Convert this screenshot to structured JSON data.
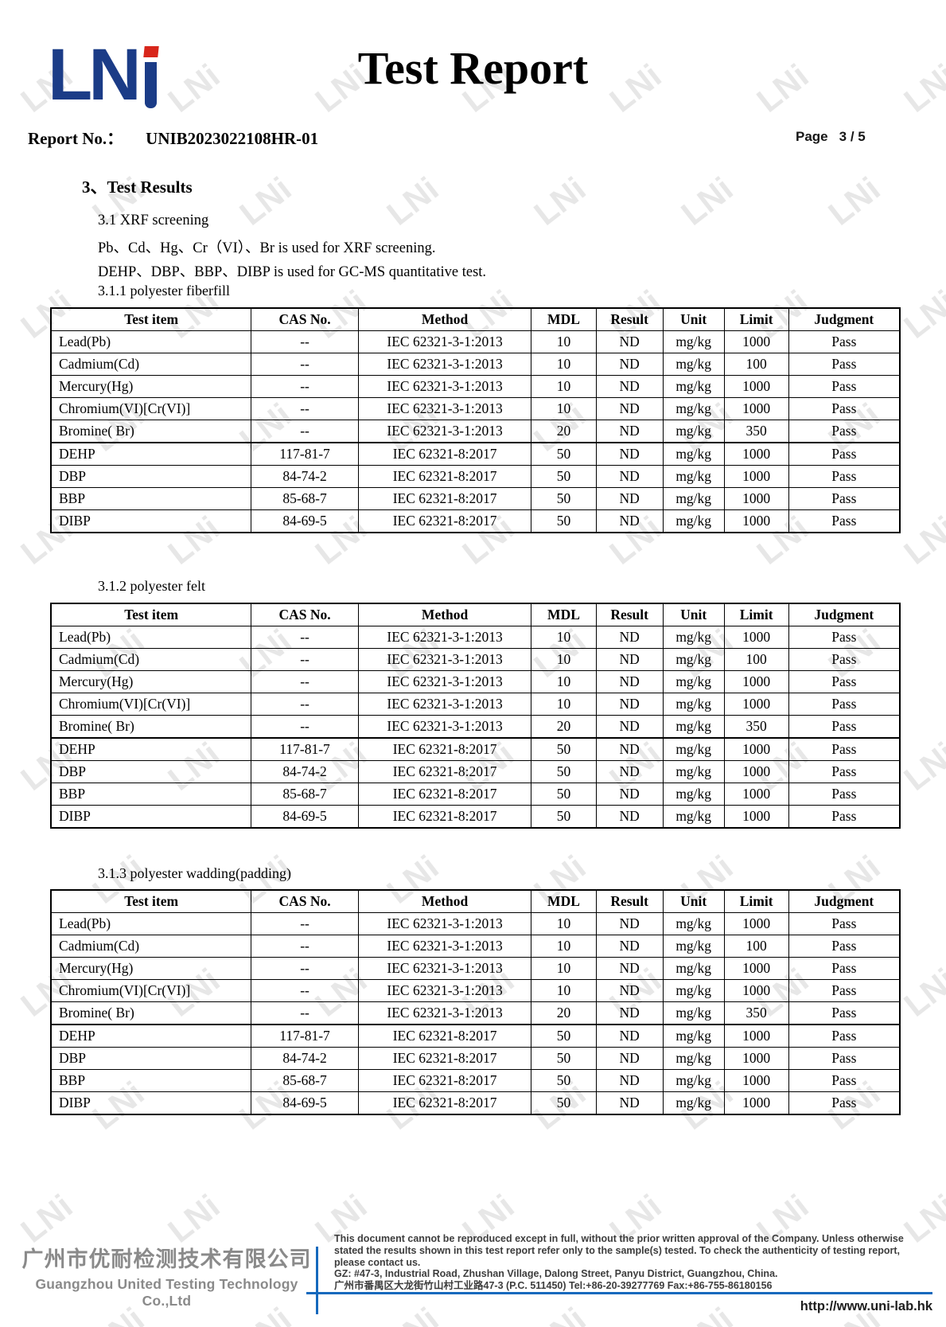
{
  "watermark": {
    "text": "LNi"
  },
  "header": {
    "logo": {
      "text_main": "LN",
      "text_i": "i",
      "blue": "#1b3c87",
      "red": "#d8261b"
    },
    "title": "Test Report",
    "report_no_label": "Report No.：",
    "report_no_value": "UNIB2023022108HR-01",
    "page_label": "Page",
    "page_value": "3 / 5"
  },
  "sections": {
    "results_heading": "3、Test Results",
    "sub_heading": "3.1 XRF screening",
    "desc_line1": "Pb、Cd、Hg、Cr（VI）、Br is used for XRF screening.",
    "desc_line2": "DEHP、DBP、BBP、DIBP is used for GC-MS quantitative test."
  },
  "table_columns": [
    "Test item",
    "CAS No.",
    "Method",
    "MDL",
    "Result",
    "Unit",
    "Limit",
    "Judgment"
  ],
  "tables": [
    {
      "caption": "3.1.1 polyester fiberfill",
      "rows": [
        [
          "Lead(Pb)",
          "--",
          "IEC 62321-3-1:2013",
          "10",
          "ND",
          "mg/kg",
          "1000",
          "Pass"
        ],
        [
          "Cadmium(Cd)",
          "--",
          "IEC 62321-3-1:2013",
          "10",
          "ND",
          "mg/kg",
          "100",
          "Pass"
        ],
        [
          "Mercury(Hg)",
          "--",
          "IEC 62321-3-1:2013",
          "10",
          "ND",
          "mg/kg",
          "1000",
          "Pass"
        ],
        [
          "Chromium(VI)[Cr(VI)]",
          "--",
          "IEC 62321-3-1:2013",
          "10",
          "ND",
          "mg/kg",
          "1000",
          "Pass"
        ],
        [
          "Bromine( Br)",
          "--",
          "IEC 62321-3-1:2013",
          "20",
          "ND",
          "mg/kg",
          "350",
          "Pass"
        ],
        [
          "DEHP",
          "117-81-7",
          "IEC 62321-8:2017",
          "50",
          "ND",
          "mg/kg",
          "1000",
          "Pass"
        ],
        [
          "DBP",
          "84-74-2",
          "IEC 62321-8:2017",
          "50",
          "ND",
          "mg/kg",
          "1000",
          "Pass"
        ],
        [
          "BBP",
          "85-68-7",
          "IEC 62321-8:2017",
          "50",
          "ND",
          "mg/kg",
          "1000",
          "Pass"
        ],
        [
          "DIBP",
          "84-69-5",
          "IEC 62321-8:2017",
          "50",
          "ND",
          "mg/kg",
          "1000",
          "Pass"
        ]
      ]
    },
    {
      "caption": "3.1.2 polyester felt",
      "rows": [
        [
          "Lead(Pb)",
          "--",
          "IEC 62321-3-1:2013",
          "10",
          "ND",
          "mg/kg",
          "1000",
          "Pass"
        ],
        [
          "Cadmium(Cd)",
          "--",
          "IEC 62321-3-1:2013",
          "10",
          "ND",
          "mg/kg",
          "100",
          "Pass"
        ],
        [
          "Mercury(Hg)",
          "--",
          "IEC 62321-3-1:2013",
          "10",
          "ND",
          "mg/kg",
          "1000",
          "Pass"
        ],
        [
          "Chromium(VI)[Cr(VI)]",
          "--",
          "IEC 62321-3-1:2013",
          "10",
          "ND",
          "mg/kg",
          "1000",
          "Pass"
        ],
        [
          "Bromine( Br)",
          "--",
          "IEC 62321-3-1:2013",
          "20",
          "ND",
          "mg/kg",
          "350",
          "Pass"
        ],
        [
          "DEHP",
          "117-81-7",
          "IEC 62321-8:2017",
          "50",
          "ND",
          "mg/kg",
          "1000",
          "Pass"
        ],
        [
          "DBP",
          "84-74-2",
          "IEC 62321-8:2017",
          "50",
          "ND",
          "mg/kg",
          "1000",
          "Pass"
        ],
        [
          "BBP",
          "85-68-7",
          "IEC 62321-8:2017",
          "50",
          "ND",
          "mg/kg",
          "1000",
          "Pass"
        ],
        [
          "DIBP",
          "84-69-5",
          "IEC 62321-8:2017",
          "50",
          "ND",
          "mg/kg",
          "1000",
          "Pass"
        ]
      ]
    },
    {
      "caption": "3.1.3 polyester wadding(padding)",
      "rows": [
        [
          "Lead(Pb)",
          "--",
          "IEC 62321-3-1:2013",
          "10",
          "ND",
          "mg/kg",
          "1000",
          "Pass"
        ],
        [
          "Cadmium(Cd)",
          "--",
          "IEC 62321-3-1:2013",
          "10",
          "ND",
          "mg/kg",
          "100",
          "Pass"
        ],
        [
          "Mercury(Hg)",
          "--",
          "IEC 62321-3-1:2013",
          "10",
          "ND",
          "mg/kg",
          "1000",
          "Pass"
        ],
        [
          "Chromium(VI)[Cr(VI)]",
          "--",
          "IEC 62321-3-1:2013",
          "10",
          "ND",
          "mg/kg",
          "1000",
          "Pass"
        ],
        [
          "Bromine( Br)",
          "--",
          "IEC 62321-3-1:2013",
          "20",
          "ND",
          "mg/kg",
          "350",
          "Pass"
        ],
        [
          "DEHP",
          "117-81-7",
          "IEC 62321-8:2017",
          "50",
          "ND",
          "mg/kg",
          "1000",
          "Pass"
        ],
        [
          "DBP",
          "84-74-2",
          "IEC 62321-8:2017",
          "50",
          "ND",
          "mg/kg",
          "1000",
          "Pass"
        ],
        [
          "BBP",
          "85-68-7",
          "IEC 62321-8:2017",
          "50",
          "ND",
          "mg/kg",
          "1000",
          "Pass"
        ],
        [
          "DIBP",
          "84-69-5",
          "IEC 62321-8:2017",
          "50",
          "ND",
          "mg/kg",
          "1000",
          "Pass"
        ]
      ]
    }
  ],
  "footer": {
    "company_cn": "广州市优耐检测技术有限公司",
    "company_en": "Guangzhou United Testing Technology Co.,Ltd",
    "disclaimer": "This document cannot be reproduced except in full, without the prior written approval of the Company. Unless otherwise stated the results shown in this test report refer only to the sample(s) tested. To check the authenticity of testing report, please contact us.",
    "address_en": "GZ: #47-3, Industrial Road, Zhushan Village, Dalong Street, Panyu District, Guangzhou, China.",
    "address_cn": "广州市番禺区大龙街竹山村工业路47-3  (P.C. 511450)   Tel:+86-20-39277769   Fax:+86-755-86180156",
    "website": "http://www.uni-lab.hk",
    "line_color": "#1569bd"
  }
}
